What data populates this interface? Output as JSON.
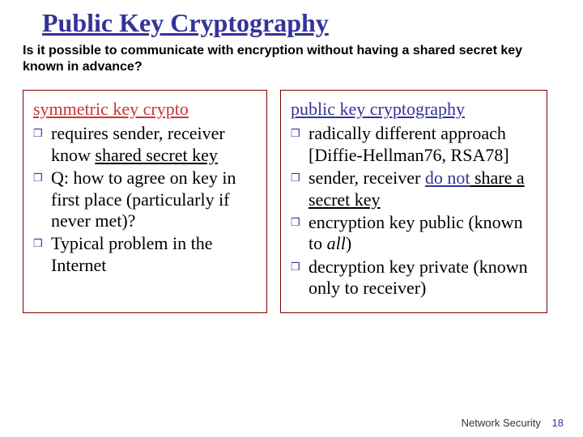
{
  "title": "Public Key Cryptography",
  "subtitle": "Is it possible to communicate with encryption without having a shared secret key known in advance?",
  "left": {
    "heading": "symmetric key crypto",
    "item1_a": "requires sender, receiver know ",
    "item1_b": "shared secret key",
    "item2": "Q: how to agree on key in first place (particularly if never met)?",
    "item3": "Typical problem in the Internet"
  },
  "right": {
    "heading": "public key cryptography",
    "item1": "radically different approach [Diffie-Hellman76, RSA78]",
    "item2_a": "sender, receiver ",
    "item2_b": "do not",
    "item2_c": " share a secret key",
    "item3_a": "encryption key ",
    "item3_b": "public",
    "item3_c": " (known to ",
    "item3_d": "all",
    "item3_e": ")",
    "item4": "decryption key private (known only to receiver)"
  },
  "footer_text": "Network Security",
  "page_number": "18",
  "colors": {
    "title": "#333399",
    "left_heading": "#cc3333",
    "right_heading": "#333399",
    "box_border": "#800000",
    "bullet": "#333399"
  }
}
